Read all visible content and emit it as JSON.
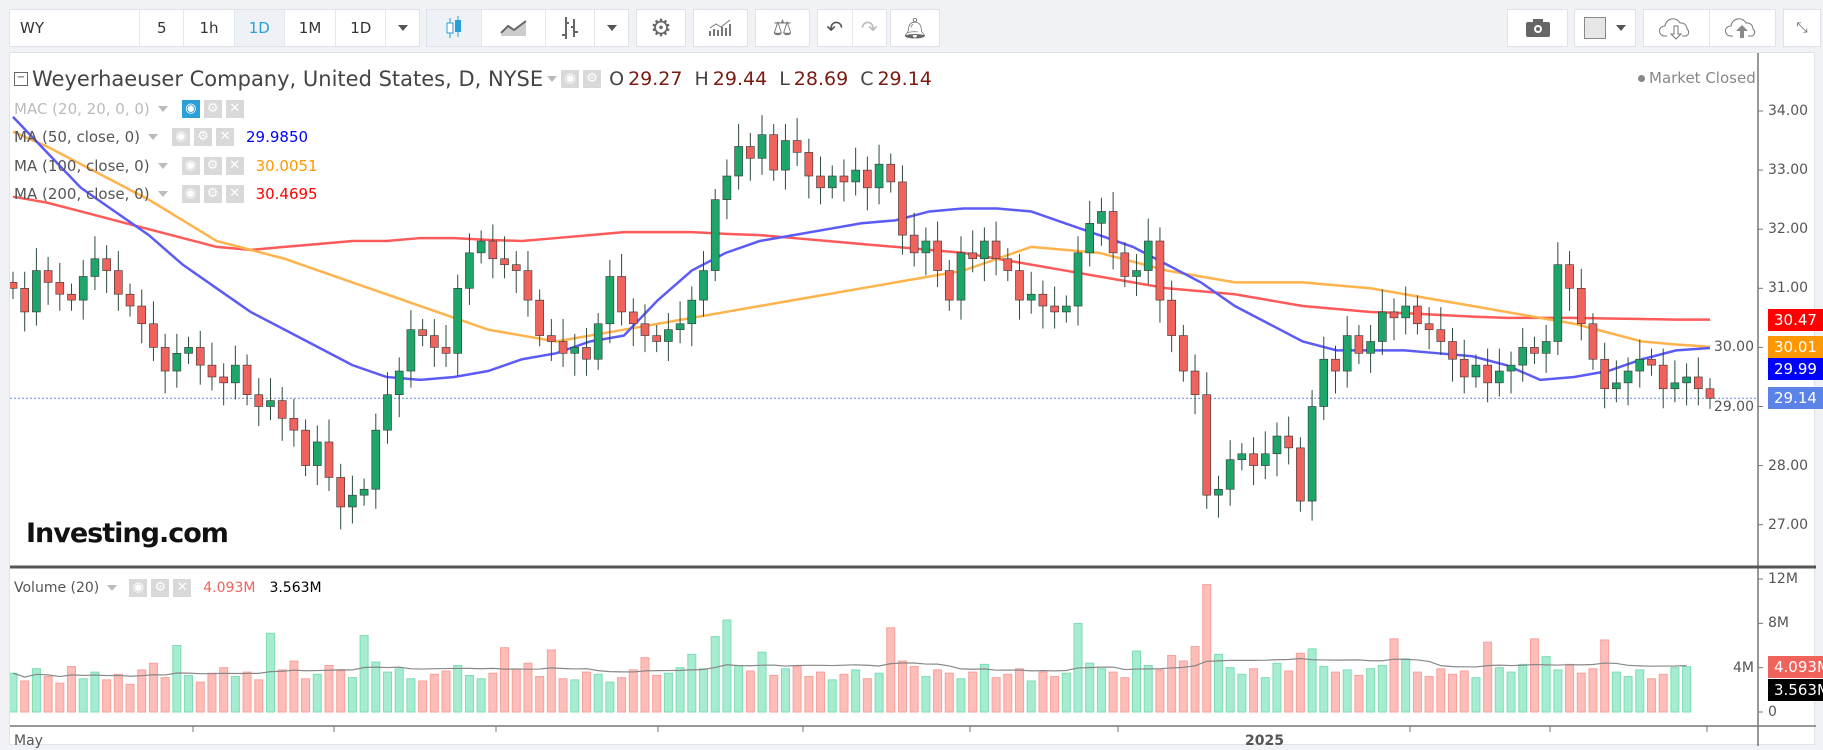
{
  "toolbar": {
    "symbol": "WY",
    "intervals": [
      "5",
      "1h",
      "1D",
      "1M",
      "1D"
    ],
    "active_interval": "1D"
  },
  "legend": {
    "title": "Weyerhaeuser Company, United States, D, NYSE",
    "open_label": "O",
    "open": "29.27",
    "high_label": "H",
    "high": "29.44",
    "low_label": "L",
    "low": "28.69",
    "close_label": "C",
    "close": "29.14",
    "market_status": "Market Closed",
    "indicators": [
      {
        "label": "MAC (20, 20, 0, 0)",
        "value": ""
      },
      {
        "label": "MA (50, close, 0)",
        "value": "29.9850",
        "color": "#0000ff"
      },
      {
        "label": "MA (100, close, 0)",
        "value": "30.0051",
        "color": "#ff9800"
      },
      {
        "label": "MA (200, close, 0)",
        "value": "30.4695",
        "color": "#ff0000"
      }
    ],
    "volume": {
      "label": "Volume (20)",
      "value": "4.093M",
      "avg": "3.563M"
    }
  },
  "logo": "Investing.com",
  "colors": {
    "up": "#1ea66a",
    "down": "#f0625c",
    "ma50": "#5b5bf5",
    "ma100": "#ffb34d",
    "ma200": "#ff5a5a"
  },
  "chart_data": {
    "type": "candlestick",
    "price_axis": {
      "ticks": [
        "34.00",
        "33.00",
        "32.00",
        "31.00",
        "30.00",
        "29.00",
        "28.00",
        "27.00"
      ],
      "range": [
        26.5,
        34.4
      ]
    },
    "volume_axis": {
      "ticks": [
        "12M",
        "8M",
        "4M",
        "0"
      ]
    },
    "x_labels": [
      "May",
      "2025"
    ],
    "close": [
      31.0,
      30.6,
      31.3,
      31.1,
      30.9,
      30.8,
      31.2,
      31.5,
      31.3,
      30.9,
      30.7,
      30.4,
      30.0,
      29.6,
      29.9,
      30.0,
      29.7,
      29.5,
      29.4,
      29.7,
      29.2,
      29.0,
      29.1,
      28.8,
      28.6,
      28.0,
      28.4,
      27.8,
      27.3,
      27.5,
      27.6,
      28.6,
      29.2,
      29.6,
      30.3,
      30.2,
      30.0,
      29.9,
      31.0,
      31.6,
      31.8,
      31.5,
      31.4,
      31.3,
      30.8,
      30.2,
      30.1,
      29.9,
      30.0,
      29.8,
      30.4,
      31.2,
      30.6,
      30.4,
      30.2,
      30.1,
      30.3,
      30.4,
      30.8,
      31.3,
      32.5,
      32.9,
      33.4,
      33.2,
      33.6,
      33.0,
      33.5,
      33.3,
      32.9,
      32.7,
      32.9,
      32.8,
      33.0,
      32.7,
      33.1,
      32.8,
      31.9,
      31.6,
      31.8,
      31.3,
      30.8,
      31.6,
      31.5,
      31.8,
      31.5,
      31.3,
      30.8,
      30.9,
      30.7,
      30.6,
      30.7,
      31.6,
      32.1,
      32.3,
      31.6,
      31.2,
      31.3,
      31.8,
      30.8,
      30.2,
      29.6,
      29.2,
      27.5,
      27.6,
      28.1,
      28.2,
      28.0,
      28.2,
      28.5,
      28.3,
      27.4,
      29.0,
      29.8,
      29.6,
      30.2,
      29.9,
      30.1,
      30.6,
      30.5,
      30.7,
      30.4,
      30.3,
      30.1,
      29.8,
      29.5,
      29.7,
      29.4,
      29.6,
      29.7,
      30.0,
      29.9,
      30.1,
      31.4,
      31.0,
      30.4,
      29.8,
      29.3,
      29.4,
      29.6,
      29.8,
      29.7,
      29.3,
      29.4,
      29.5,
      29.3,
      29.14
    ],
    "volume_m": [
      3.5,
      2.8,
      3.9,
      3.2,
      2.6,
      4.1,
      3.0,
      3.6,
      2.9,
      3.4,
      2.5,
      3.8,
      4.4,
      3.1,
      6.0,
      3.3,
      2.7,
      3.5,
      4.0,
      3.2,
      3.6,
      2.9,
      7.1,
      3.8,
      4.6,
      3.0,
      3.4,
      4.2,
      3.7,
      3.1,
      6.9,
      4.5,
      3.6,
      3.9,
      3.0,
      2.8,
      3.4,
      3.7,
      4.2,
      3.3,
      3.0,
      3.5,
      5.8,
      3.9,
      4.4,
      3.2,
      5.6,
      3.0,
      2.9,
      3.6,
      3.4,
      2.7,
      3.1,
      3.8,
      4.9,
      3.3,
      3.5,
      4.0,
      5.2,
      3.9,
      6.8,
      8.3,
      4.2,
      3.7,
      5.4,
      3.3,
      3.9,
      4.1,
      3.2,
      3.6,
      2.9,
      3.4,
      3.8,
      3.0,
      3.5,
      7.6,
      4.6,
      4.1,
      3.2,
      3.8,
      3.5,
      3.0,
      3.6,
      4.3,
      3.1,
      3.4,
      3.9,
      2.8,
      3.6,
      3.2,
      3.5,
      8.0,
      4.4,
      3.9,
      3.6,
      3.1,
      5.5,
      4.2,
      3.8,
      5.1,
      4.6,
      5.9,
      11.5,
      5.2,
      4.0,
      3.4,
      3.9,
      3.1,
      4.4,
      3.7,
      5.3,
      5.7,
      4.1,
      3.6,
      3.8,
      3.3,
      3.9,
      4.2,
      6.6,
      4.8,
      3.6,
      3.2,
      3.9,
      3.4,
      3.7,
      3.1,
      6.3,
      4.0,
      3.6,
      4.3,
      6.6,
      5.0,
      3.8,
      4.3,
      3.5,
      3.9,
      6.5,
      3.6,
      3.2,
      3.8,
      3.0,
      3.4,
      4.0,
      4.093
    ],
    "ma50": [
      33.9,
      33.3,
      32.7,
      32.3,
      31.9,
      31.4,
      31.0,
      30.6,
      30.3,
      30.0,
      29.7,
      29.5,
      29.45,
      29.5,
      29.6,
      29.8,
      29.9,
      30.1,
      30.2,
      30.8,
      31.3,
      31.6,
      31.8,
      31.9,
      32.0,
      32.1,
      32.15,
      32.3,
      32.35,
      32.35,
      32.3,
      32.1,
      31.9,
      31.7,
      31.4,
      31.1,
      30.7,
      30.4,
      30.1,
      29.95,
      29.95,
      29.95,
      29.9,
      29.85,
      29.7,
      29.45,
      29.5,
      29.6,
      29.8,
      29.95,
      29.99
    ],
    "ma100": [
      33.65,
      33.4,
      33.1,
      32.8,
      32.5,
      32.15,
      31.8,
      31.65,
      31.5,
      31.3,
      31.1,
      30.9,
      30.7,
      30.5,
      30.3,
      30.2,
      30.1,
      30.2,
      30.3,
      30.4,
      30.5,
      30.6,
      30.7,
      30.8,
      30.9,
      31.0,
      31.1,
      31.2,
      31.3,
      31.5,
      31.7,
      31.65,
      31.6,
      31.45,
      31.3,
      31.2,
      31.1,
      31.1,
      31.1,
      31.05,
      31.0,
      30.9,
      30.8,
      30.7,
      30.6,
      30.5,
      30.4,
      30.25,
      30.1,
      30.05,
      30.01
    ],
    "ma200": [
      32.55,
      32.45,
      32.3,
      32.15,
      32.0,
      31.85,
      31.7,
      31.65,
      31.7,
      31.75,
      31.8,
      31.8,
      31.85,
      31.85,
      31.82,
      31.8,
      31.85,
      31.9,
      31.95,
      31.95,
      31.95,
      31.92,
      31.9,
      31.85,
      31.8,
      31.75,
      31.7,
      31.65,
      31.6,
      31.5,
      31.4,
      31.3,
      31.2,
      31.1,
      31.0,
      30.95,
      30.9,
      30.8,
      30.7,
      30.65,
      30.6,
      30.58,
      30.55,
      30.52,
      30.5,
      30.5,
      30.5,
      30.49,
      30.48,
      30.47,
      30.47
    ],
    "axis_labels": {
      "ma200": "30.47",
      "ma100": "30.01",
      "ma50": "29.99",
      "last": "29.14",
      "volume": "4.093M",
      "volume_avg": "3.563M"
    }
  }
}
